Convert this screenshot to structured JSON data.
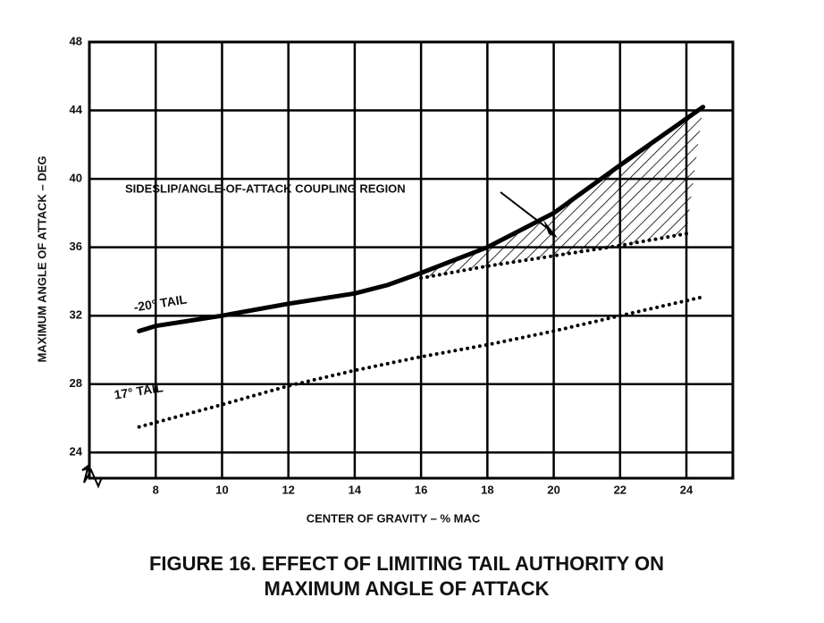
{
  "chart_data": {
    "type": "line",
    "caption": [
      "FIGURE 16.  EFFECT OF LIMITING TAIL AUTHORITY ON",
      "MAXIMUM ANGLE OF ATTACK"
    ],
    "x_label": "CENTER OF GRAVITY – % MAC",
    "y_label": "MAXIMUM ANGLE OF ATTACK – DEG",
    "annotation": "SIDESLIP/ANGLE-OF-ATTACK COUPLING REGION",
    "xlim": [
      6,
      25.4
    ],
    "ylim": [
      22.5,
      48
    ],
    "xticks": [
      8,
      10,
      12,
      14,
      16,
      18,
      20,
      22,
      24
    ],
    "yticks": [
      24,
      28,
      32,
      36,
      40,
      44,
      48
    ],
    "grid": true,
    "series": [
      {
        "name": "-20° TAIL",
        "color": "#000000",
        "style": "solid",
        "x": [
          7.5,
          8,
          10,
          12,
          14,
          15,
          16,
          18,
          20,
          22,
          24.5
        ],
        "values": [
          31.1,
          31.4,
          32,
          32.7,
          33.3,
          33.8,
          34.5,
          36,
          38,
          40.8,
          44.2
        ]
      },
      {
        "name": "17° TAIL",
        "color": "#000000",
        "style": "dotted",
        "x": [
          7.5,
          10,
          12,
          14,
          16,
          18,
          20,
          22,
          24.5
        ],
        "values": [
          25.5,
          26.8,
          27.9,
          28.8,
          29.6,
          30.3,
          31.1,
          32,
          33.1
        ]
      },
      {
        "color": "#000000",
        "style": "dotted",
        "x": [
          16,
          18,
          20,
          22,
          24
        ],
        "values": [
          34.2,
          34.9,
          35.5,
          36.1,
          36.8
        ]
      }
    ]
  }
}
